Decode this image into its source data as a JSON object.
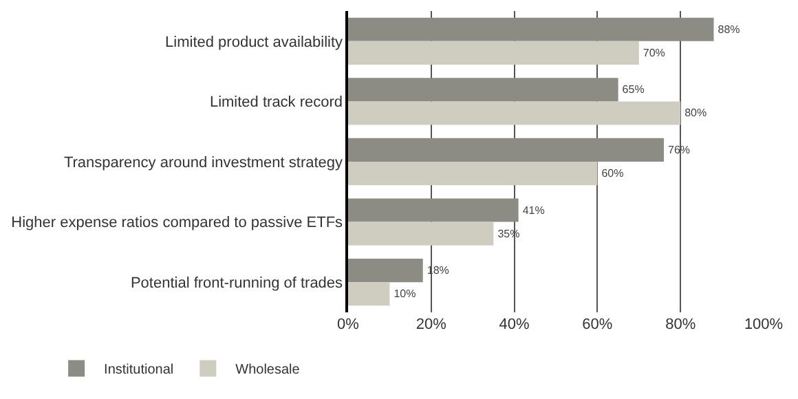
{
  "chart_data": {
    "type": "bar",
    "orientation": "horizontal",
    "categories": [
      "Limited product availability",
      "Limited track record",
      "Transparency around investment strategy",
      "Higher expense ratios compared to passive ETFs",
      "Potential front-running of trades"
    ],
    "series": [
      {
        "name": "Institutional",
        "color": "#8c8c84",
        "values": [
          88,
          65,
          76,
          41,
          18
        ],
        "value_labels": [
          "88%",
          "65%",
          "76%",
          "41%",
          "18%"
        ]
      },
      {
        "name": "Wholesale",
        "color": "#cfcdc0",
        "values": [
          70,
          80,
          60,
          35,
          10
        ],
        "value_labels": [
          "70%",
          "80%",
          "60%",
          "35%",
          "10%"
        ]
      }
    ],
    "xlim": [
      0,
      100
    ],
    "xticks": [
      {
        "value": 0,
        "label": "0%"
      },
      {
        "value": 20,
        "label": "20%"
      },
      {
        "value": 40,
        "label": "40%"
      },
      {
        "value": 60,
        "label": "60%"
      },
      {
        "value": 80,
        "label": "80%"
      },
      {
        "value": 100,
        "label": "100%"
      }
    ],
    "grid": "x",
    "legend": "bottom left"
  }
}
